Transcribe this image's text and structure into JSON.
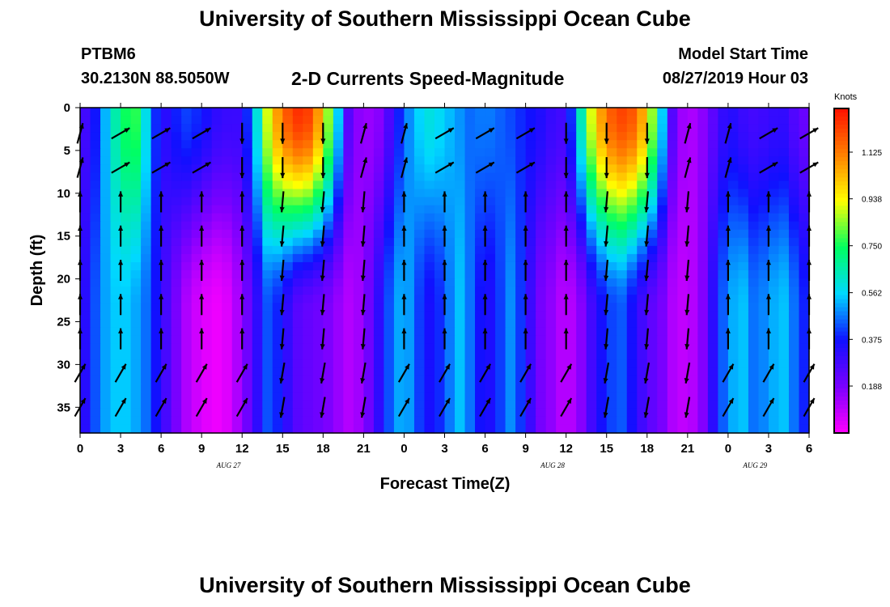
{
  "header": {
    "title": "University of Southern Mississippi Ocean Cube",
    "station": "PTBM6",
    "coords": "30.2130N 88.5050W",
    "subtitle": "2-D Currents Speed-Magnitude",
    "model_label": "Model Start Time",
    "model_time": "08/27/2019 Hour 03"
  },
  "footer": {
    "title": "University of Southern Mississippi Ocean Cube"
  },
  "colorbar": {
    "units": "Knots",
    "ticks": [
      "1.125",
      "0.938",
      "0.750",
      "0.562",
      "0.375",
      "0.188"
    ],
    "tick_values": [
      1.125,
      0.938,
      0.75,
      0.562,
      0.375,
      0.188
    ],
    "range": [
      0.0,
      1.3
    ],
    "colors": [
      "#ff00ff",
      "#7a00ff",
      "#1010ff",
      "#00d8ff",
      "#00ff60",
      "#ffff00",
      "#ff8000",
      "#ff1000"
    ]
  },
  "chart_data": {
    "type": "heatmap",
    "title": "2-D Currents Speed-Magnitude",
    "xlabel": "Forecast Time(Z)",
    "ylabel": "Depth (ft)",
    "x_tick_labels": [
      "0",
      "3",
      "6",
      "9",
      "12",
      "15",
      "18",
      "21",
      "0",
      "3",
      "6",
      "9",
      "12",
      "15",
      "18",
      "21",
      "0",
      "3",
      "6"
    ],
    "x_tick_hours": [
      0,
      3,
      6,
      9,
      12,
      15,
      18,
      21,
      24,
      27,
      30,
      33,
      36,
      39,
      42,
      45,
      48,
      51,
      54
    ],
    "date_labels": [
      {
        "label": "AUG 27",
        "hour": 11
      },
      {
        "label": "AUG 28",
        "hour": 35
      },
      {
        "label": "AUG 29",
        "hour": 50
      }
    ],
    "xlim": [
      0,
      54
    ],
    "y_tick_labels": [
      "0",
      "5",
      "10",
      "15",
      "20",
      "25",
      "30",
      "35"
    ],
    "y_tick_values": [
      0,
      5,
      10,
      15,
      20,
      25,
      30,
      35
    ],
    "ylim": [
      0,
      38
    ],
    "speed_profiles_knots": {
      "note": "approximate current speed (knots) vs forecast hour, read from color",
      "hours": [
        0,
        1,
        2,
        3,
        4,
        5,
        6,
        7,
        8,
        9,
        10,
        11,
        12,
        13,
        14,
        15,
        16,
        17,
        18,
        19,
        20,
        21,
        22,
        23,
        24,
        25,
        26,
        27,
        28,
        29,
        30,
        31,
        32,
        33,
        34,
        35,
        36,
        37,
        38,
        39,
        40,
        41,
        42,
        43,
        44,
        45,
        46,
        47,
        48,
        49,
        50,
        51,
        52,
        53,
        54
      ],
      "surface": [
        0.25,
        0.35,
        0.55,
        0.72,
        0.8,
        0.55,
        0.3,
        0.38,
        0.42,
        0.38,
        0.32,
        0.3,
        0.3,
        0.55,
        0.95,
        1.15,
        1.25,
        1.22,
        1.0,
        0.6,
        0.2,
        0.14,
        0.15,
        0.28,
        0.45,
        0.55,
        0.6,
        0.55,
        0.5,
        0.45,
        0.48,
        0.45,
        0.42,
        0.38,
        0.35,
        0.3,
        0.28,
        0.6,
        0.95,
        1.15,
        1.22,
        1.18,
        1.0,
        0.6,
        0.2,
        0.1,
        0.15,
        0.25,
        0.35,
        0.3,
        0.28,
        0.3,
        0.32,
        0.25,
        0.2
      ],
      "bottom": [
        0.28,
        0.42,
        0.52,
        0.56,
        0.52,
        0.45,
        0.32,
        0.2,
        0.1,
        0.05,
        0.02,
        0.05,
        0.15,
        0.3,
        0.45,
        0.35,
        0.25,
        0.22,
        0.2,
        0.15,
        0.1,
        0.15,
        0.3,
        0.45,
        0.55,
        0.42,
        0.35,
        0.42,
        0.55,
        0.45,
        0.32,
        0.4,
        0.5,
        0.35,
        0.2,
        0.15,
        0.08,
        0.15,
        0.3,
        0.4,
        0.45,
        0.35,
        0.25,
        0.2,
        0.1,
        0.08,
        0.15,
        0.35,
        0.5,
        0.55,
        0.45,
        0.5,
        0.55,
        0.45,
        0.35
      ]
    }
  }
}
